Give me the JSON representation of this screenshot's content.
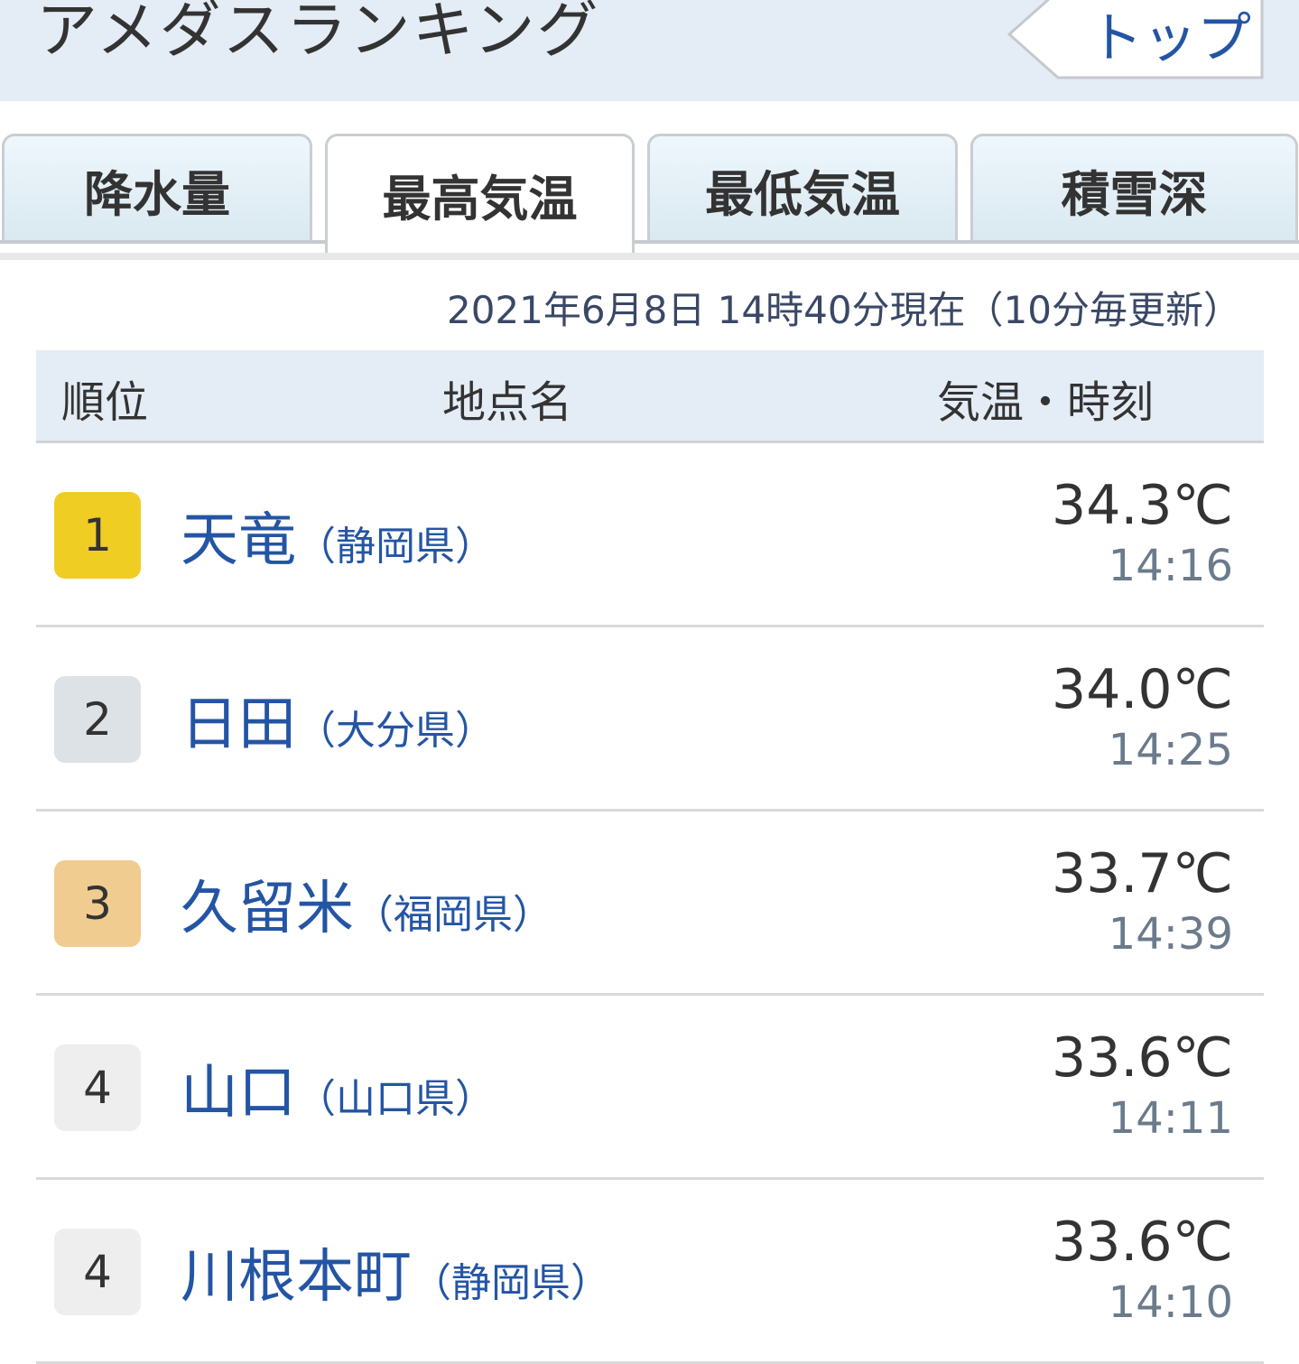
{
  "header": {
    "title": "アメダスランキング",
    "top_button": "トップ"
  },
  "tabs": [
    {
      "label": "降水量",
      "active": false
    },
    {
      "label": "最高気温",
      "active": true
    },
    {
      "label": "最低気温",
      "active": false
    },
    {
      "label": "積雪深",
      "active": false
    }
  ],
  "updated": "2021年6月8日 14時40分現在（10分毎更新）",
  "table": {
    "headers": {
      "rank": "順位",
      "place": "地点名",
      "temp_time": "気温・時刻"
    },
    "rows": [
      {
        "rank": "1",
        "name": "天竜",
        "pref": "（静岡県）",
        "temp": "34.3℃",
        "time": "14:16",
        "badge_color": "#f0cd23"
      },
      {
        "rank": "2",
        "name": "日田",
        "pref": "（大分県）",
        "temp": "34.0℃",
        "time": "14:25",
        "badge_color": "#dde2e6"
      },
      {
        "rank": "3",
        "name": "久留米",
        "pref": "（福岡県）",
        "temp": "33.7℃",
        "time": "14:39",
        "badge_color": "#f0cc90"
      },
      {
        "rank": "4",
        "name": "山口",
        "pref": "（山口県）",
        "temp": "33.6℃",
        "time": "14:11",
        "badge_color": "#eeeeee"
      },
      {
        "rank": "4",
        "name": "川根本町",
        "pref": "（静岡県）",
        "temp": "33.6℃",
        "time": "14:10",
        "badge_color": "#eeeeee"
      }
    ]
  }
}
